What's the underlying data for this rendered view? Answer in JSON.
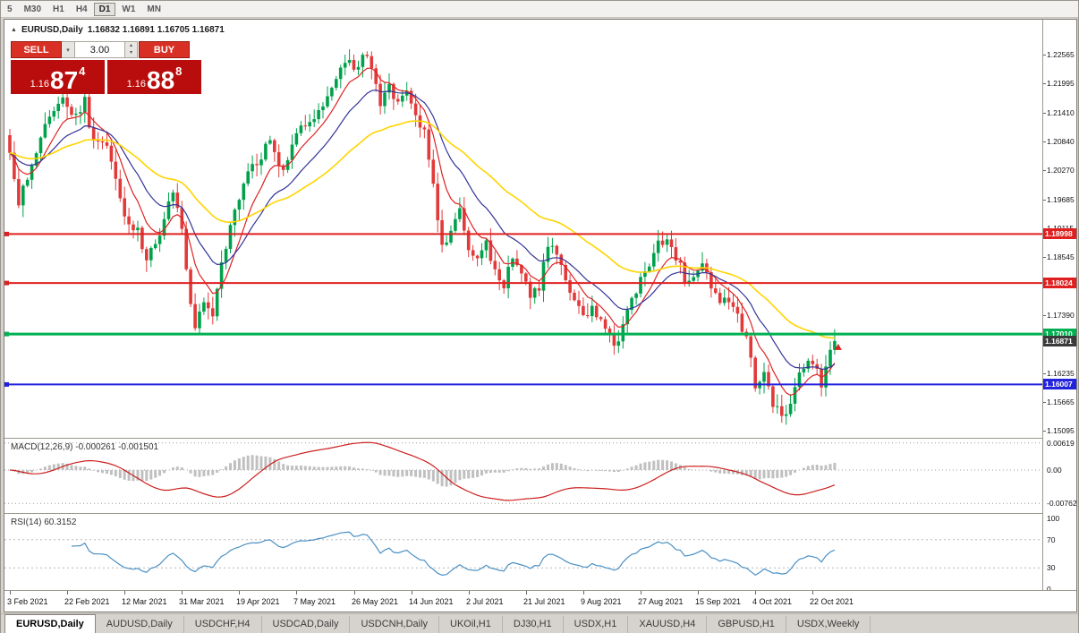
{
  "toolbar": {
    "timeframes": [
      "5",
      "M30",
      "H1",
      "H4",
      "D1",
      "W1",
      "MN"
    ],
    "active": "D1"
  },
  "chart": {
    "title": "EURUSD,Daily",
    "ohlc": "1.16832 1.16891 1.16705 1.16871"
  },
  "trade_panel": {
    "sell_label": "SELL",
    "buy_label": "BUY",
    "volume": "3.00",
    "sell_price": {
      "small": "1.16",
      "big": "87",
      "sup": "4"
    },
    "buy_price": {
      "small": "1.16",
      "big": "88",
      "sup": "8"
    }
  },
  "icons": {
    "collapse_triangle": "▲",
    "spinner_up": "▴",
    "spinner_down": "▾",
    "dropdown": "▾"
  },
  "colors": {
    "bull": "#00a14b",
    "bear": "#e23a3a",
    "macd_hist": "#c0c0c0",
    "macd_signal": "#cc1f1f",
    "rsi": "#4a90c4",
    "current_tag": "#3a3a3a"
  },
  "chart_data": {
    "type": "candlestick",
    "symbol": "EURUSD",
    "timeframe": "Daily",
    "quote": {
      "open": 1.16832,
      "high": 1.16891,
      "low": 1.16705,
      "close": 1.16871
    },
    "bar_count": 188,
    "x_label_step": 13,
    "x_labels": [
      "3 Feb 2021",
      "22 Feb 2021",
      "12 Mar 2021",
      "31 Mar 2021",
      "19 Apr 2021",
      "7 May 2021",
      "26 May 2021",
      "14 Jun 2021",
      "2 Jul 2021",
      "21 Jul 2021",
      "9 Aug 2021",
      "27 Aug 2021",
      "15 Sep 2021",
      "4 Oct 2021",
      "22 Oct 2021"
    ],
    "y_ticks": [
      1.22565,
      1.21995,
      1.2141,
      1.2084,
      1.2027,
      1.19685,
      1.19115,
      1.18545,
      1.1739,
      1.16235,
      1.15665,
      1.15095
    ],
    "ylim": [
      1.14947,
      1.23259
    ],
    "hlines": [
      {
        "price": 1.18998,
        "label": "1.18998",
        "color": "#e02020",
        "width": 2
      },
      {
        "price": 1.18024,
        "label": "1.18024",
        "color": "#e02020",
        "width": 2
      },
      {
        "price": 1.1701,
        "label": "1.17010",
        "color": "#00b050",
        "width": 3
      },
      {
        "price": 1.16007,
        "label": "1.16007",
        "color": "#2222dd",
        "width": 2
      }
    ],
    "current_price_tag": {
      "price": 1.16871,
      "label": "1.16871"
    },
    "moving_averages": [
      {
        "period": 8,
        "color": "#dd2222",
        "width": 1.2
      },
      {
        "period": 18,
        "color": "#333399",
        "width": 1.2
      },
      {
        "period": 45,
        "color": "#ffd400",
        "width": 1.6
      }
    ],
    "price_anchors": [
      [
        0,
        1.2055
      ],
      [
        2,
        1.1965
      ],
      [
        5,
        1.203
      ],
      [
        8,
        1.211
      ],
      [
        12,
        1.2165
      ],
      [
        15,
        1.2135
      ],
      [
        17,
        1.217
      ],
      [
        19,
        1.2075
      ],
      [
        22,
        1.207
      ],
      [
        24,
        1.201
      ],
      [
        26,
        1.193
      ],
      [
        29,
        1.1905
      ],
      [
        31,
        1.185
      ],
      [
        34,
        1.1895
      ],
      [
        37,
        1.1985
      ],
      [
        39,
        1.1905
      ],
      [
        41,
        1.177
      ],
      [
        42,
        1.1715
      ],
      [
        44,
        1.1775
      ],
      [
        46,
        1.1745
      ],
      [
        48,
        1.184
      ],
      [
        51,
        1.195
      ],
      [
        54,
        1.2035
      ],
      [
        57,
        1.2045
      ],
      [
        59,
        1.2095
      ],
      [
        62,
        1.202
      ],
      [
        65,
        1.2095
      ],
      [
        68,
        1.2125
      ],
      [
        71,
        1.216
      ],
      [
        74,
        1.2205
      ],
      [
        76,
        1.2245
      ],
      [
        78,
        1.2225
      ],
      [
        80,
        1.226
      ],
      [
        82,
        1.2225
      ],
      [
        84,
        1.215
      ],
      [
        86,
        1.2195
      ],
      [
        88,
        1.216
      ],
      [
        90,
        1.2185
      ],
      [
        92,
        1.2125
      ],
      [
        94,
        1.2105
      ],
      [
        96,
        1.1995
      ],
      [
        98,
        1.187
      ],
      [
        100,
        1.1905
      ],
      [
        102,
        1.195
      ],
      [
        104,
        1.186
      ],
      [
        106,
        1.1845
      ],
      [
        108,
        1.188
      ],
      [
        110,
        1.1825
      ],
      [
        112,
        1.18
      ],
      [
        114,
        1.1855
      ],
      [
        116,
        1.1815
      ],
      [
        118,
        1.1775
      ],
      [
        120,
        1.1795
      ],
      [
        122,
        1.188
      ],
      [
        124,
        1.1865
      ],
      [
        126,
        1.181
      ],
      [
        128,
        1.177
      ],
      [
        130,
        1.1735
      ],
      [
        132,
        1.1755
      ],
      [
        134,
        1.173
      ],
      [
        136,
        1.17
      ],
      [
        137,
        1.1668
      ],
      [
        139,
        1.172
      ],
      [
        141,
        1.1765
      ],
      [
        143,
        1.1805
      ],
      [
        145,
        1.184
      ],
      [
        147,
        1.1895
      ],
      [
        149,
        1.188
      ],
      [
        151,
        1.1855
      ],
      [
        153,
        1.181
      ],
      [
        155,
        1.1825
      ],
      [
        157,
        1.184
      ],
      [
        159,
        1.179
      ],
      [
        161,
        1.1755
      ],
      [
        163,
        1.177
      ],
      [
        165,
        1.1735
      ],
      [
        167,
        1.169
      ],
      [
        169,
        1.16
      ],
      [
        171,
        1.1625
      ],
      [
        173,
        1.1565
      ],
      [
        175,
        1.1535
      ],
      [
        177,
        1.157
      ],
      [
        179,
        1.1615
      ],
      [
        181,
        1.165
      ],
      [
        183,
        1.163
      ],
      [
        184,
        1.1595
      ],
      [
        185,
        1.164
      ],
      [
        186,
        1.166
      ],
      [
        187,
        1.16871
      ]
    ],
    "macd": {
      "label": "MACD(12,26,9) -0.000261 -0.001501",
      "scale": [
        {
          "v": 0.00619,
          "t": "0.00619"
        },
        {
          "v": 0,
          "t": "0.00"
        },
        {
          "v": -0.00762,
          "t": "-0.00762"
        }
      ]
    },
    "rsi": {
      "label": "RSI(14) 60.3152",
      "scale": [
        100,
        70,
        30,
        0
      ],
      "levels": [
        70,
        30
      ]
    }
  },
  "tabs": {
    "active": "EURUSD,Daily",
    "items": [
      "EURUSD,Daily",
      "AUDUSD,Daily",
      "USDCHF,H4",
      "USDCAD,Daily",
      "USDCNH,Daily",
      "UKOil,H1",
      "DJ30,H1",
      "USDX,H1",
      "XAUUSD,H4",
      "GBPUSD,H1",
      "USDX,Weekly"
    ]
  }
}
